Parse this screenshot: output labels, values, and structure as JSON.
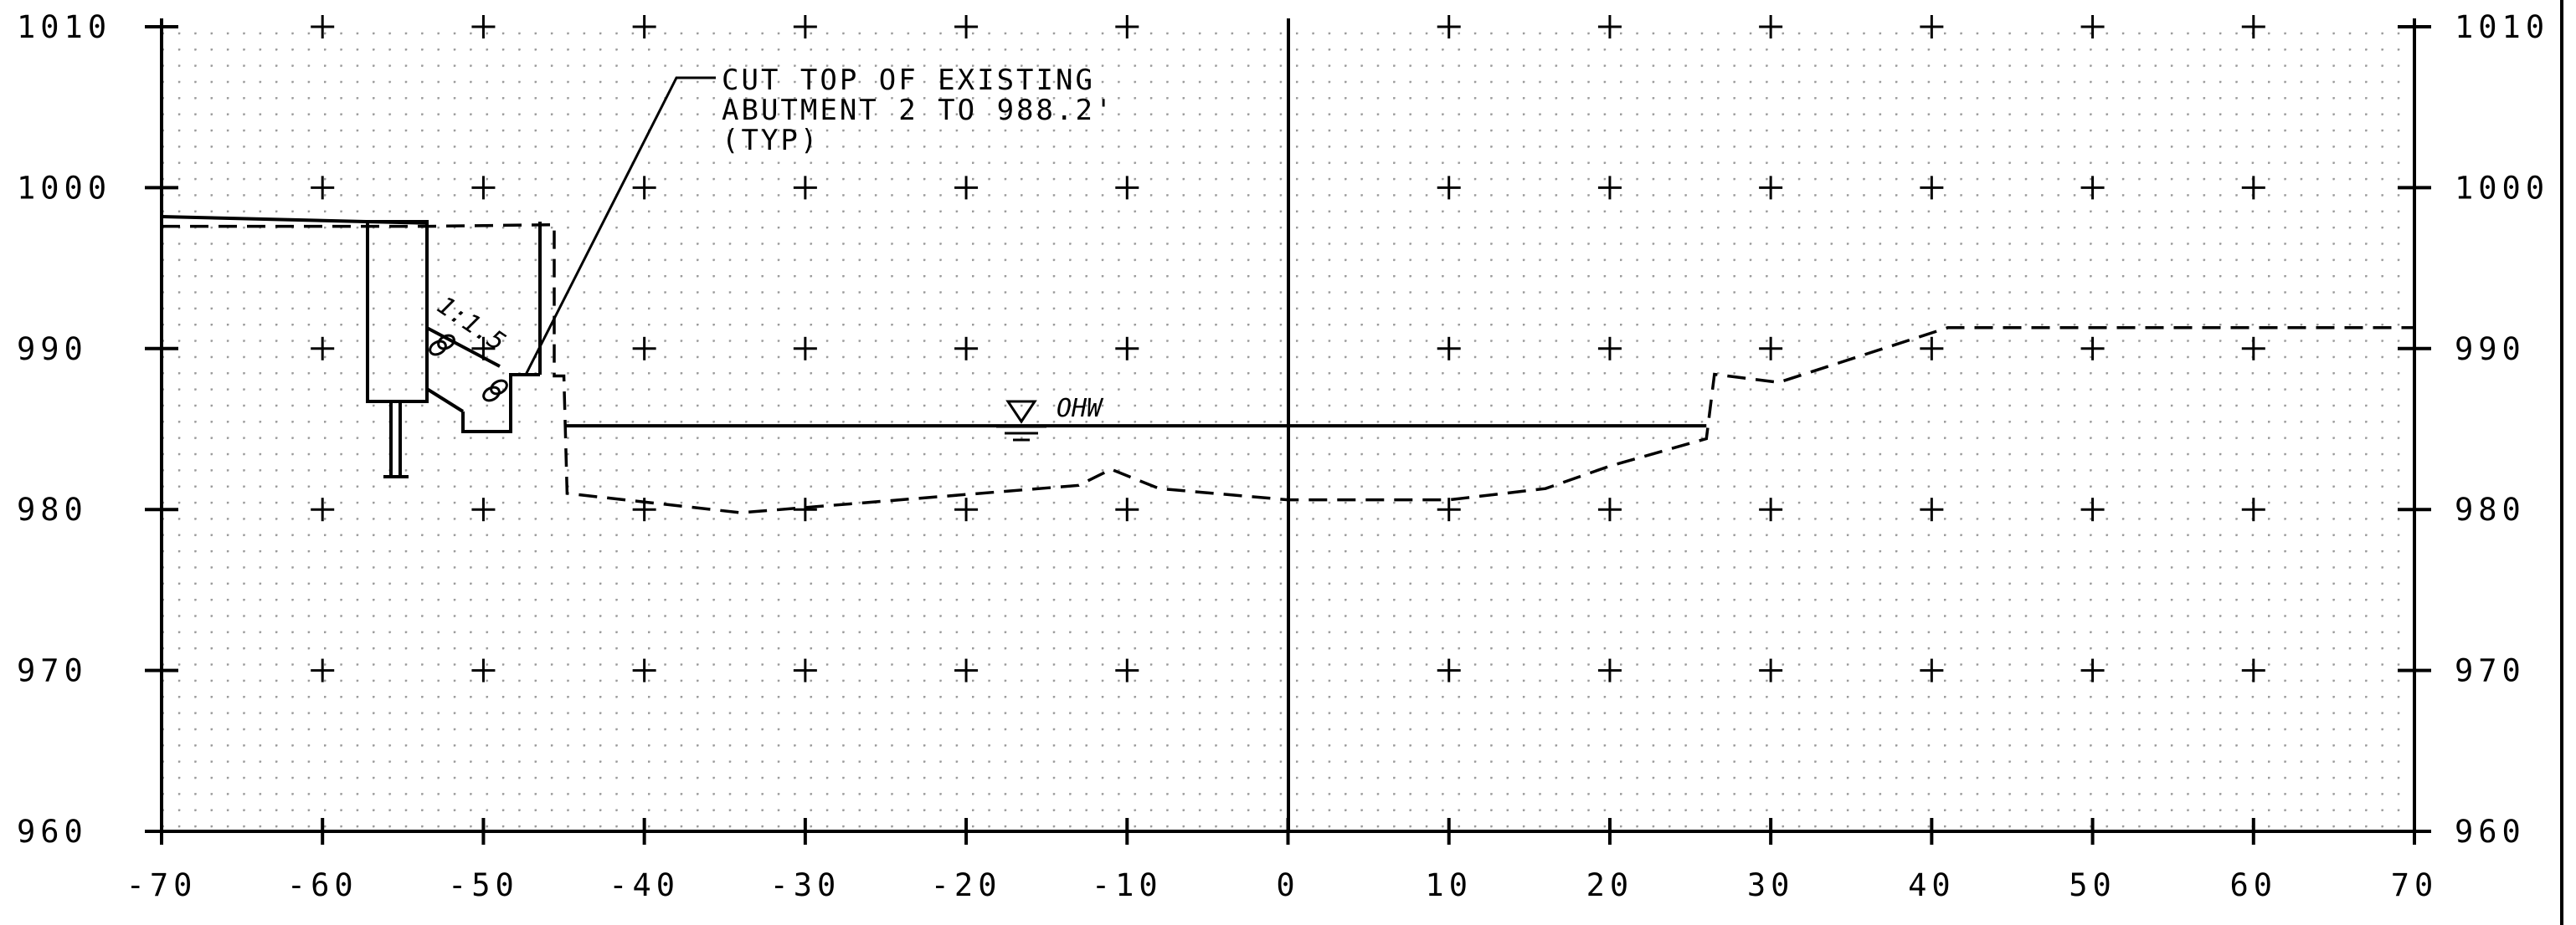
{
  "drawing": {
    "x_axis": {
      "min": -70,
      "max": 70,
      "ticks": [
        "-70",
        "-60",
        "-50",
        "-40",
        "-30",
        "-20",
        "-10",
        "0",
        "10",
        "20",
        "30",
        "40",
        "50",
        "60",
        "70"
      ]
    },
    "y_axis": {
      "min": 960,
      "max": 1010,
      "ticks": [
        "960",
        "970",
        "980",
        "990",
        "1000",
        "1010"
      ]
    },
    "grid": "dotted grid with cross markers every 10 units",
    "note": {
      "line1": "CUT TOP OF EXISTING",
      "line2": "ABUTMENT 2 TO 988.2'",
      "line3": "(TYP)"
    },
    "slope_label": "1:1.5",
    "water_label": "OHW",
    "water_elevation": 985.2,
    "existing_ground": [
      {
        "x": -70,
        "y": 997.6
      },
      {
        "x": -53.5,
        "y": 997.6
      },
      {
        "x": -45.6,
        "y": 997.7
      },
      {
        "x": -45.6,
        "y": 988.3
      },
      {
        "x": -45,
        "y": 988.3
      },
      {
        "x": -44.8,
        "y": 981.0
      },
      {
        "x": -34,
        "y": 979.8
      },
      {
        "x": -13,
        "y": 981.5
      },
      {
        "x": -11,
        "y": 982.5
      },
      {
        "x": -8,
        "y": 981.3
      },
      {
        "x": 0,
        "y": 980.6
      },
      {
        "x": 10,
        "y": 980.6
      },
      {
        "x": 16,
        "y": 981.3
      },
      {
        "x": 20,
        "y": 982.7
      },
      {
        "x": 26,
        "y": 984.4
      },
      {
        "x": 26.5,
        "y": 988.4
      },
      {
        "x": 30.5,
        "y": 987.9
      },
      {
        "x": 41,
        "y": 991.3
      },
      {
        "x": 58,
        "y": 991.3
      },
      {
        "x": 70,
        "y": 991.3
      }
    ],
    "proposed_ground": [
      {
        "x": -70,
        "y": 998.2
      },
      {
        "x": -53.5,
        "y": 997.8
      }
    ]
  }
}
